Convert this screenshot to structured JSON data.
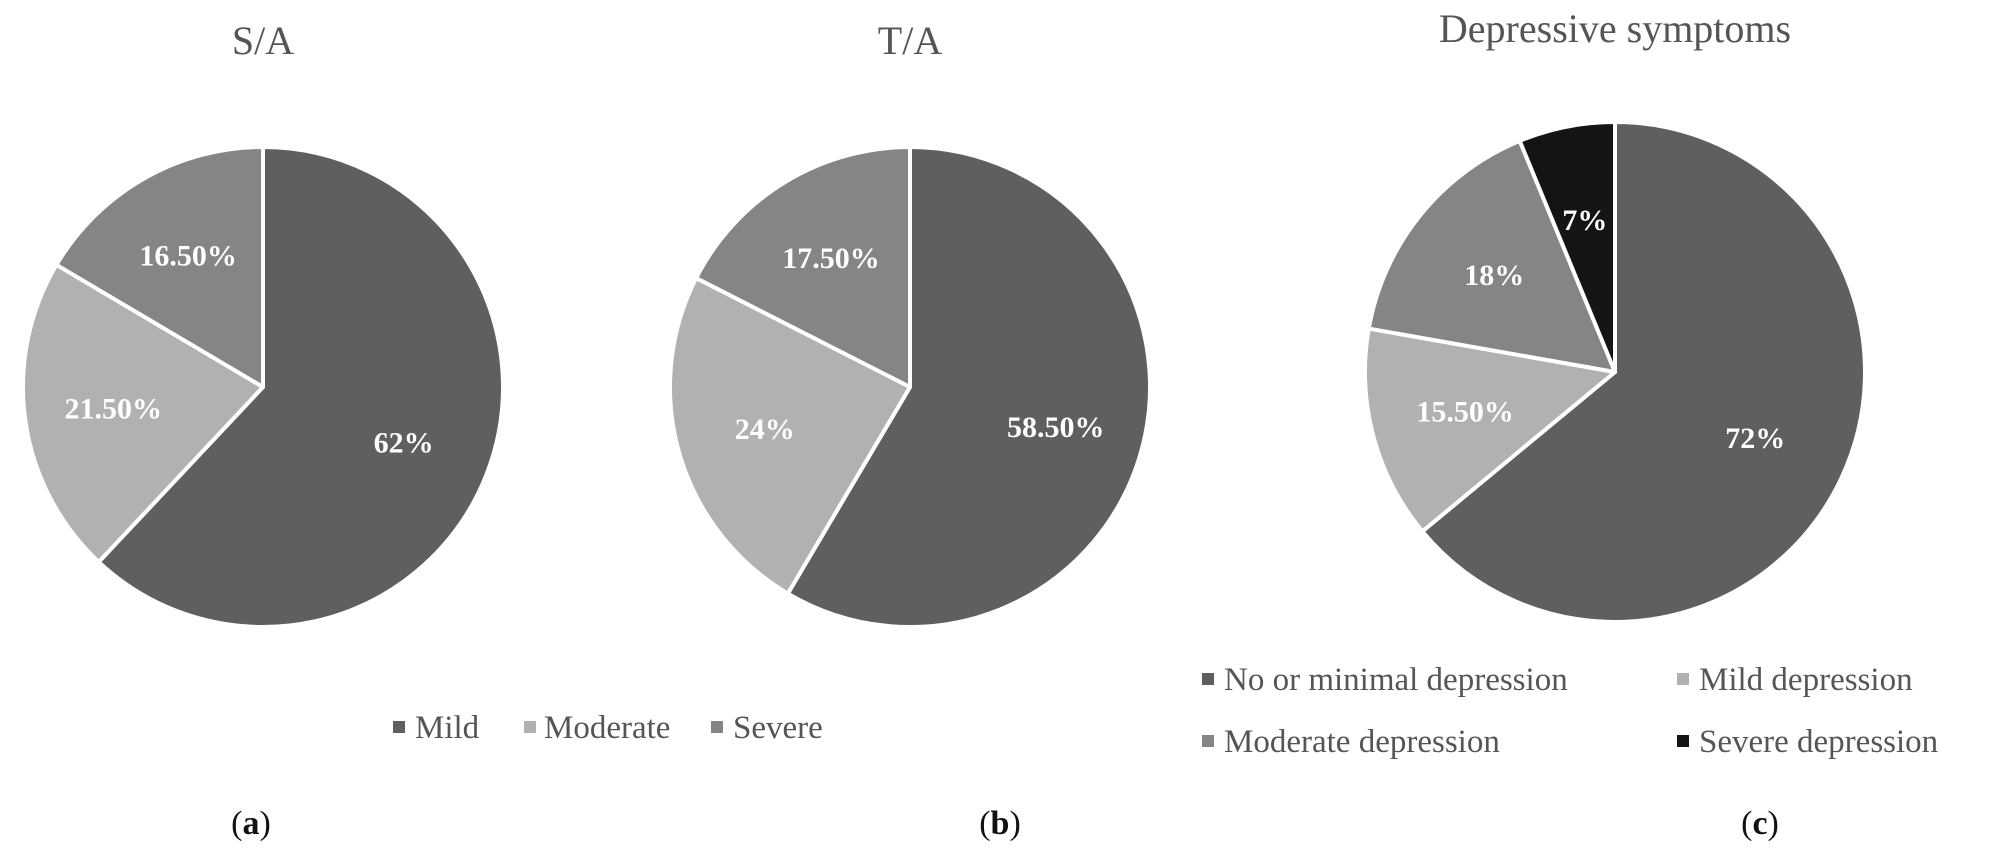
{
  "chart_data": [
    {
      "type": "pie",
      "title": "S/A",
      "panel_label": "a",
      "categories": [
        "Mild",
        "Moderate",
        "Severe"
      ],
      "values": [
        62,
        21.5,
        16.5
      ],
      "labels": [
        "62%",
        "21.50%",
        "16.50%"
      ],
      "colors": [
        "#5f5f5f",
        "#b1b1b1",
        "#858585"
      ],
      "legend": [
        "Mild",
        "Moderate",
        "Severe"
      ],
      "legend_position": "bottom"
    },
    {
      "type": "pie",
      "title": "T/A",
      "panel_label": "b",
      "categories": [
        "Mild",
        "Moderate",
        "Severe"
      ],
      "values": [
        58.5,
        24,
        17.5
      ],
      "labels": [
        "58.50%",
        "24%",
        "17.50%"
      ],
      "colors": [
        "#5f5f5f",
        "#b1b1b1",
        "#858585"
      ],
      "legend": [],
      "legend_position": "shared"
    },
    {
      "type": "pie",
      "title": "Depressive symptoms",
      "panel_label": "c",
      "categories": [
        "No or minimal depression",
        "Mild depression",
        "Moderate depression",
        "Severe depression"
      ],
      "values": [
        72,
        15.5,
        18,
        7
      ],
      "labels": [
        "72%",
        "15.50%",
        "18%",
        "7%"
      ],
      "colors": [
        "#5f5f5f",
        "#b1b1b1",
        "#858585",
        "#141414"
      ],
      "legend": [
        "No or minimal depression",
        "Mild depression",
        "Moderate depression",
        "Severe depression"
      ],
      "legend_position": "bottom"
    }
  ],
  "panel_tags": {
    "open": "(",
    "close": ")"
  }
}
